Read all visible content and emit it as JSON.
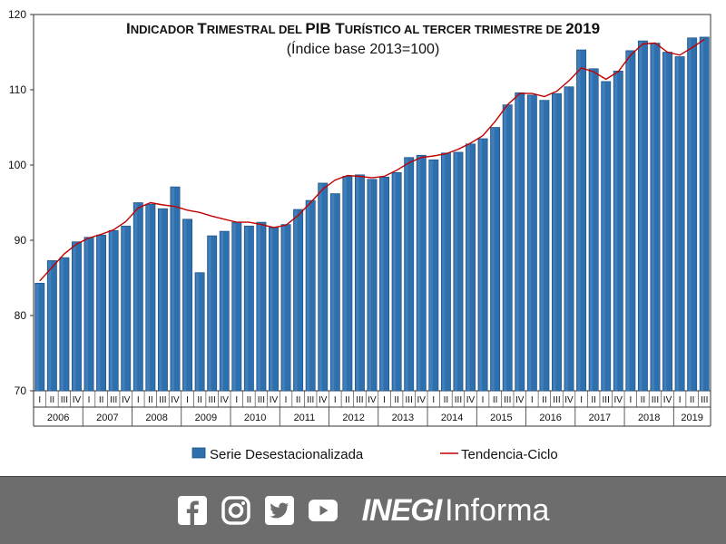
{
  "chart_data": {
    "type": "bar",
    "title": "Indicador Trimestral del PIB Turístico al tercer trimestre de 2019",
    "subtitle": "(Índice base 2013=100)",
    "title_parts": [
      {
        "text": "I",
        "big": true
      },
      {
        "text": "NDICADOR ",
        "big": false
      },
      {
        "text": "T",
        "big": true
      },
      {
        "text": "RIMESTRAL DEL ",
        "big": false
      },
      {
        "text": "PIB T",
        "big": true
      },
      {
        "text": "URÍSTICO AL TERCER TRIMESTRE DE ",
        "big": false
      },
      {
        "text": "2019",
        "big": true
      }
    ],
    "ylim": [
      70,
      120
    ],
    "yticks": [
      70,
      80,
      90,
      100,
      110,
      120
    ],
    "quarter_labels": [
      "I",
      "II",
      "III",
      "IV"
    ],
    "years": [
      "2006",
      "2007",
      "2008",
      "2009",
      "2010",
      "2011",
      "2012",
      "2013",
      "2014",
      "2015",
      "2016",
      "2017",
      "2018",
      "2019"
    ],
    "quarters_per_year": [
      4,
      4,
      4,
      4,
      4,
      4,
      4,
      4,
      4,
      4,
      4,
      4,
      4,
      3
    ],
    "series": [
      {
        "name": "Serie Desestacionalizada",
        "kind": "bar",
        "color": "#2e6fad",
        "values": [
          84.3,
          87.3,
          87.7,
          89.8,
          90.4,
          90.7,
          91.3,
          91.9,
          95.0,
          94.8,
          94.2,
          97.1,
          92.8,
          85.7,
          90.6,
          91.2,
          92.4,
          91.9,
          92.4,
          91.7,
          92.1,
          94.1,
          95.3,
          97.6,
          96.2,
          98.5,
          98.7,
          98.1,
          98.4,
          99.0,
          101.0,
          101.3,
          100.7,
          101.6,
          101.7,
          102.8,
          103.5,
          105.0,
          108.0,
          109.6,
          109.3,
          108.6,
          109.5,
          110.4,
          115.3,
          112.8,
          111.1,
          112.5,
          115.2,
          116.5,
          116.2,
          115.0,
          114.4,
          116.9,
          117.0
        ]
      },
      {
        "name": "Tendencia-Ciclo",
        "kind": "line",
        "color": "#c00000",
        "values": [
          84.6,
          86.4,
          88.2,
          89.5,
          90.3,
          90.8,
          91.4,
          92.5,
          94.3,
          95.0,
          94.7,
          94.5,
          94.0,
          93.7,
          93.2,
          92.8,
          92.4,
          92.4,
          92.1,
          91.7,
          92.0,
          93.3,
          95.0,
          96.8,
          98.0,
          98.6,
          98.5,
          98.3,
          98.5,
          99.3,
          100.3,
          101.0,
          101.2,
          101.5,
          102.1,
          102.9,
          103.9,
          105.8,
          108.0,
          109.5,
          109.5,
          109.1,
          109.8,
          111.2,
          112.9,
          112.4,
          111.4,
          112.4,
          114.6,
          116.1,
          116.2,
          115.0,
          114.6,
          115.6,
          116.7
        ]
      }
    ],
    "grid": false,
    "legend_position": "bottom"
  },
  "footer": {
    "brand_strong": "INEGI",
    "brand_light": "Informa",
    "icons": [
      "facebook-icon",
      "instagram-icon",
      "twitter-icon",
      "youtube-icon"
    ],
    "background": "#6d6d6d"
  }
}
